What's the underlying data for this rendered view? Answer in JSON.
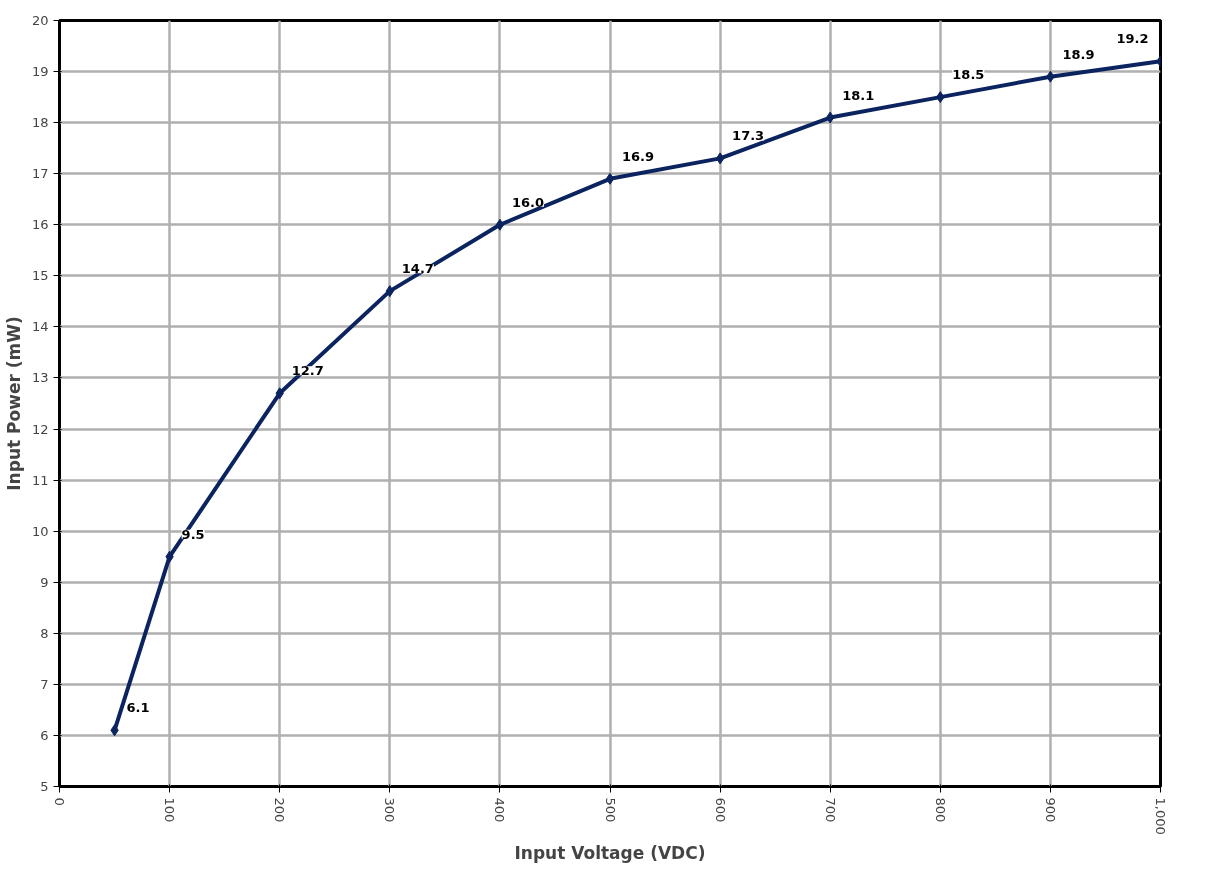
{
  "chart_data": {
    "type": "line",
    "xlabel": "Input Voltage (VDC)",
    "ylabel": "Input Power (mW)",
    "x": [
      50,
      100,
      200,
      300,
      400,
      500,
      600,
      700,
      800,
      900,
      1000
    ],
    "series": [
      {
        "color": "#0b2460",
        "values": [
          6.1,
          9.5,
          12.7,
          14.7,
          16.0,
          16.9,
          17.3,
          18.1,
          18.5,
          18.9,
          19.2
        ],
        "value_labels": [
          "6.1",
          "9.5",
          "12.7",
          "14.7",
          "16.0",
          "16.9",
          "17.3",
          "18.1",
          "18.5",
          "18.9",
          "19.2"
        ]
      }
    ],
    "xlim": [
      0,
      1000
    ],
    "xticks": [
      0,
      100,
      200,
      300,
      400,
      500,
      600,
      700,
      800,
      900,
      {
        "value": 1000,
        "label": "1,000"
      }
    ],
    "ylim": [
      5,
      20
    ],
    "yticks": [
      5,
      6,
      7,
      8,
      9,
      10,
      11,
      12,
      13,
      14,
      15,
      16,
      17,
      18,
      19,
      20
    ],
    "grid": true,
    "marker": "diamond",
    "line_style": "solid"
  }
}
